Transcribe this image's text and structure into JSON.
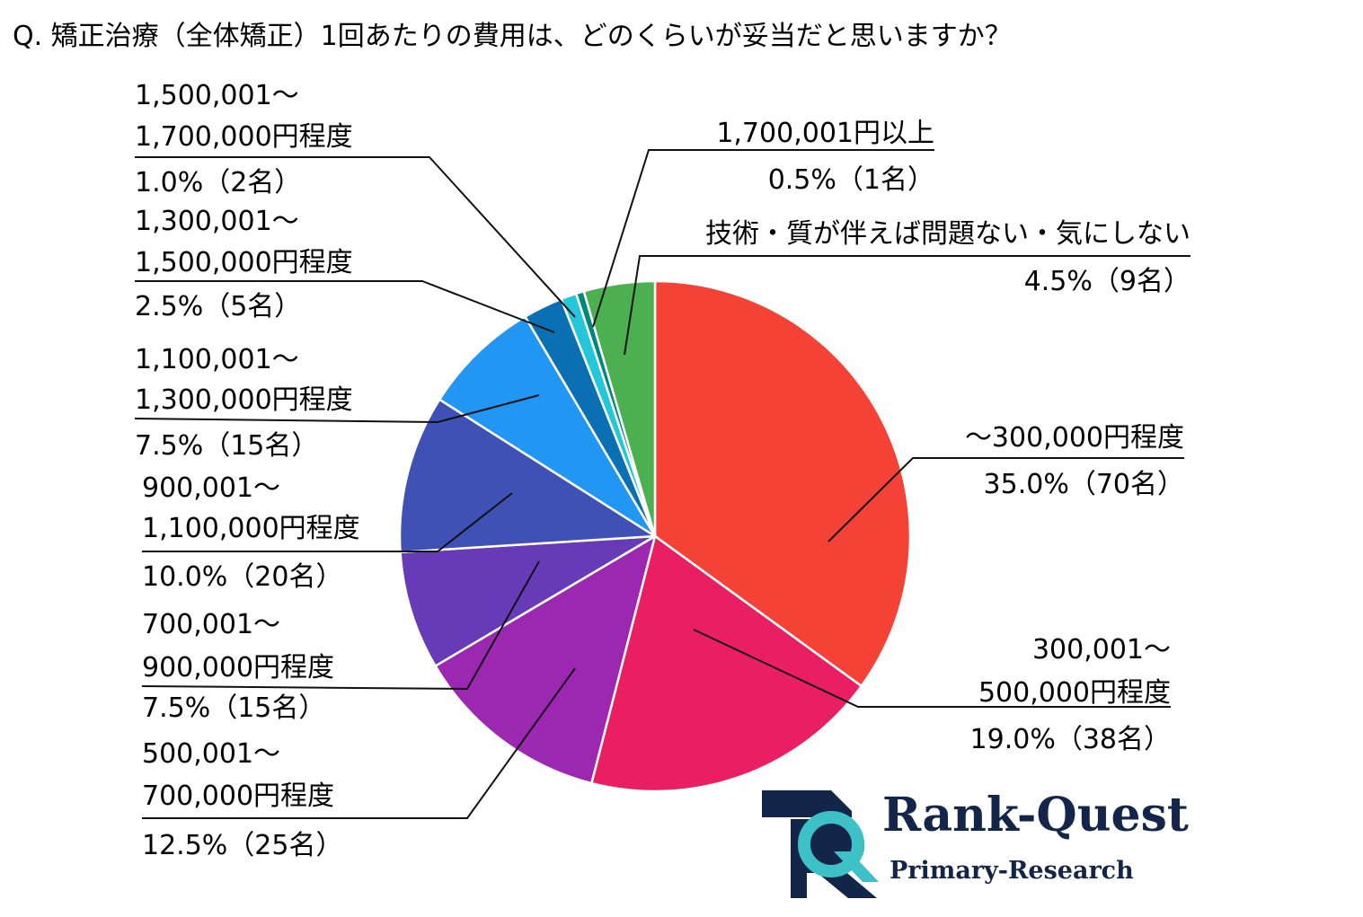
{
  "title": "Q. 矯正治療（全体矯正）1回あたりの費用は、どのくらいが妥当だと思いますか？",
  "logo": {
    "name": "Rank-Quest",
    "subtitle": "Primary-Research"
  },
  "colors": {
    "slices": [
      "#f44336",
      "#e91e63",
      "#9c27b0",
      "#673ab7",
      "#3f51b5",
      "#2196f3",
      "#0a6fb3",
      "#26c6da",
      "#00897b",
      "#4caf50"
    ],
    "logo_navy": "#13264a",
    "logo_teal": "#3ec0c7"
  },
  "chart_data": {
    "type": "pie",
    "start_angle_deg": 0,
    "direction": "clockwise",
    "slices": [
      {
        "label": "～300,000円程度",
        "value": 35.0,
        "count": "35.0%（70名）",
        "text_lines": [
          "～300,000円程度",
          "35.0%（70名）"
        ]
      },
      {
        "label": "300,001～500,000円程度",
        "value": 19.0,
        "count": "19.0%（38名）",
        "text_lines": [
          "300,001～",
          "500,000円程度",
          "19.0%（38名）"
        ]
      },
      {
        "label": "500,001～700,000円程度",
        "value": 12.5,
        "count": "12.5%（25名）",
        "text_lines": [
          "500,001～",
          "700,000円程度",
          "12.5%（25名）"
        ]
      },
      {
        "label": "700,001～900,000円程度",
        "value": 7.5,
        "count": "7.5%（15名）",
        "text_lines": [
          "700,001～",
          "900,000円程度",
          "7.5%（15名）"
        ]
      },
      {
        "label": "900,001～1,100,000円程度",
        "value": 10.0,
        "count": "10.0%（20名）",
        "text_lines": [
          "900,001～",
          "1,100,000円程度",
          "10.0%（20名）"
        ]
      },
      {
        "label": "1,100,001～1,300,000円程度",
        "value": 7.5,
        "count": "7.5%（15名）",
        "text_lines": [
          "1,100,001～",
          "1,300,000円程度",
          "7.5%（15名）"
        ]
      },
      {
        "label": "1,300,001～1,500,000円程度",
        "value": 2.5,
        "count": "2.5%（5名）",
        "text_lines": [
          "1,300,001～",
          "1,500,000円程度",
          "2.5%（5名）"
        ]
      },
      {
        "label": "1,500,001～1,700,000円程度",
        "value": 1.0,
        "count": "1.0%（2名）",
        "text_lines": [
          "1,500,001～",
          "1,700,000円程度",
          "1.0%（2名）"
        ]
      },
      {
        "label": "1,700,001円以上",
        "value": 0.5,
        "count": "0.5%（1名）",
        "text_lines": [
          "1,700,001円以上",
          "0.5%（1名）"
        ]
      },
      {
        "label": "技術・質が伴えば問題ない・気にしない",
        "value": 4.5,
        "count": "4.5%（9名）",
        "text_lines": [
          "技術・質が伴えば問題ない・気にしない",
          "4.5%（9名）"
        ]
      }
    ]
  }
}
